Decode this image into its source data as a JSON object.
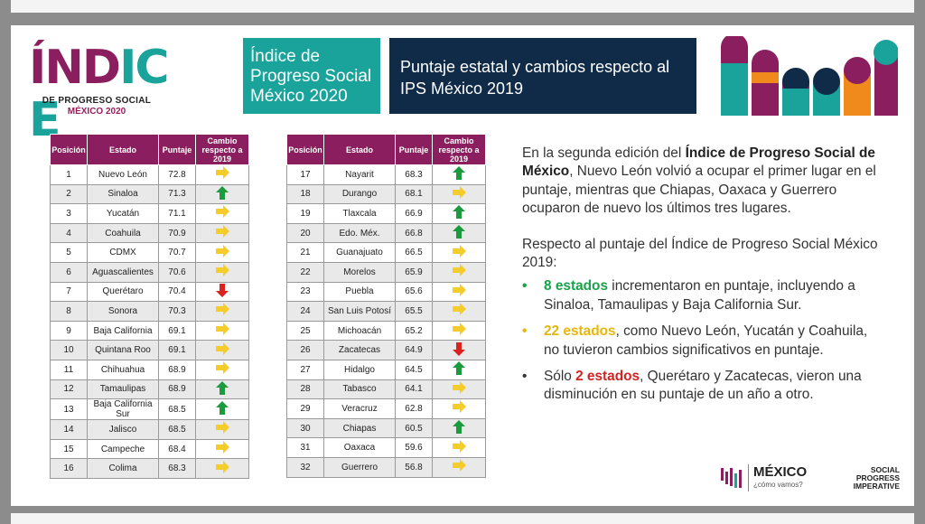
{
  "logo": {
    "word": "ÍNDICE",
    "subtitle": "DE PROGRESO SOCIAL",
    "edition": "MÉXICO 2020"
  },
  "header": {
    "teal_title": "Índice de Progreso Social México 2020",
    "navy_title": "Puntaje estatal y cambios respecto al IPS México 2019"
  },
  "table_headers": {
    "pos": "Posición",
    "estado": "Estado",
    "puntaje": "Puntaje",
    "cambio": "Cambio respecto a 2019"
  },
  "table_left": [
    {
      "pos": "1",
      "estado": "Nuevo León",
      "puntaje": "72.8",
      "cambio": "same"
    },
    {
      "pos": "2",
      "estado": "Sinaloa",
      "puntaje": "71.3",
      "cambio": "up"
    },
    {
      "pos": "3",
      "estado": "Yucatán",
      "puntaje": "71.1",
      "cambio": "same"
    },
    {
      "pos": "4",
      "estado": "Coahuila",
      "puntaje": "70.9",
      "cambio": "same"
    },
    {
      "pos": "5",
      "estado": "CDMX",
      "puntaje": "70.7",
      "cambio": "same"
    },
    {
      "pos": "6",
      "estado": "Aguascalientes",
      "puntaje": "70.6",
      "cambio": "same"
    },
    {
      "pos": "7",
      "estado": "Querétaro",
      "puntaje": "70.4",
      "cambio": "down"
    },
    {
      "pos": "8",
      "estado": "Sonora",
      "puntaje": "70.3",
      "cambio": "same"
    },
    {
      "pos": "9",
      "estado": "Baja California",
      "puntaje": "69.1",
      "cambio": "same"
    },
    {
      "pos": "10",
      "estado": "Quintana Roo",
      "puntaje": "69.1",
      "cambio": "same"
    },
    {
      "pos": "11",
      "estado": "Chihuahua",
      "puntaje": "68.9",
      "cambio": "same"
    },
    {
      "pos": "12",
      "estado": "Tamaulipas",
      "puntaje": "68.9",
      "cambio": "up"
    },
    {
      "pos": "13",
      "estado": "Baja California Sur",
      "puntaje": "68.5",
      "cambio": "up"
    },
    {
      "pos": "14",
      "estado": "Jalisco",
      "puntaje": "68.5",
      "cambio": "same"
    },
    {
      "pos": "15",
      "estado": "Campeche",
      "puntaje": "68.4",
      "cambio": "same"
    },
    {
      "pos": "16",
      "estado": "Colima",
      "puntaje": "68.3",
      "cambio": "same"
    }
  ],
  "table_right": [
    {
      "pos": "17",
      "estado": "Nayarit",
      "puntaje": "68.3",
      "cambio": "up"
    },
    {
      "pos": "18",
      "estado": "Durango",
      "puntaje": "68.1",
      "cambio": "same"
    },
    {
      "pos": "19",
      "estado": "Tlaxcala",
      "puntaje": "66.9",
      "cambio": "up"
    },
    {
      "pos": "20",
      "estado": "Edo. Méx.",
      "puntaje": "66.8",
      "cambio": "up"
    },
    {
      "pos": "21",
      "estado": "Guanajuato",
      "puntaje": "66.5",
      "cambio": "same"
    },
    {
      "pos": "22",
      "estado": "Morelos",
      "puntaje": "65.9",
      "cambio": "same"
    },
    {
      "pos": "23",
      "estado": "Puebla",
      "puntaje": "65.6",
      "cambio": "same"
    },
    {
      "pos": "24",
      "estado": "San Luis Potosí",
      "puntaje": "65.5",
      "cambio": "same"
    },
    {
      "pos": "25",
      "estado": "Michoacán",
      "puntaje": "65.2",
      "cambio": "same"
    },
    {
      "pos": "26",
      "estado": "Zacatecas",
      "puntaje": "64.9",
      "cambio": "down"
    },
    {
      "pos": "27",
      "estado": "Hidalgo",
      "puntaje": "64.5",
      "cambio": "up"
    },
    {
      "pos": "28",
      "estado": "Tabasco",
      "puntaje": "64.1",
      "cambio": "same"
    },
    {
      "pos": "29",
      "estado": "Veracruz",
      "puntaje": "62.8",
      "cambio": "same"
    },
    {
      "pos": "30",
      "estado": "Chiapas",
      "puntaje": "60.5",
      "cambio": "up"
    },
    {
      "pos": "31",
      "estado": "Oaxaca",
      "puntaje": "59.6",
      "cambio": "same"
    },
    {
      "pos": "32",
      "estado": "Guerrero",
      "puntaje": "56.8",
      "cambio": "same"
    }
  ],
  "arrow_colors": {
    "up": "#1c9a3e",
    "same": "#f5cd2a",
    "down": "#d8231f"
  },
  "text": {
    "p1_a": "En la segunda edición del ",
    "p1_b": "Índice de Progreso Social de México",
    "p1_c": ", Nuevo León volvió a ocupar el primer lugar en el puntaje, mientras que Chiapas, Oaxaca y Guerrero ocuparon de nuevo los últimos tres lugares.",
    "p2": "Respecto al puntaje del Índice de Progreso Social México 2019:",
    "b1_a": "8 estados",
    "b1_b": " incrementaron en puntaje, incluyendo a Sinaloa, Tamaulipas y Baja California Sur.",
    "b2_a": "22 estados",
    "b2_b": ", como Nuevo León, Yucatán y Coahuila, no tuvieron cambios significativos en puntaje.",
    "b3_a": "Sólo ",
    "b3_b": "2 estados",
    "b3_c": ", Querétaro y Zacatecas, vieron una disminución en su puntaje de un año a otro.",
    "bullet": "•"
  },
  "footer": {
    "mexico": "MÉXICO",
    "como": "¿cómo vamos?",
    "spi_1": "SOCIAL",
    "spi_2": "PROGRESS",
    "spi_3": "IMPERATIVE"
  }
}
